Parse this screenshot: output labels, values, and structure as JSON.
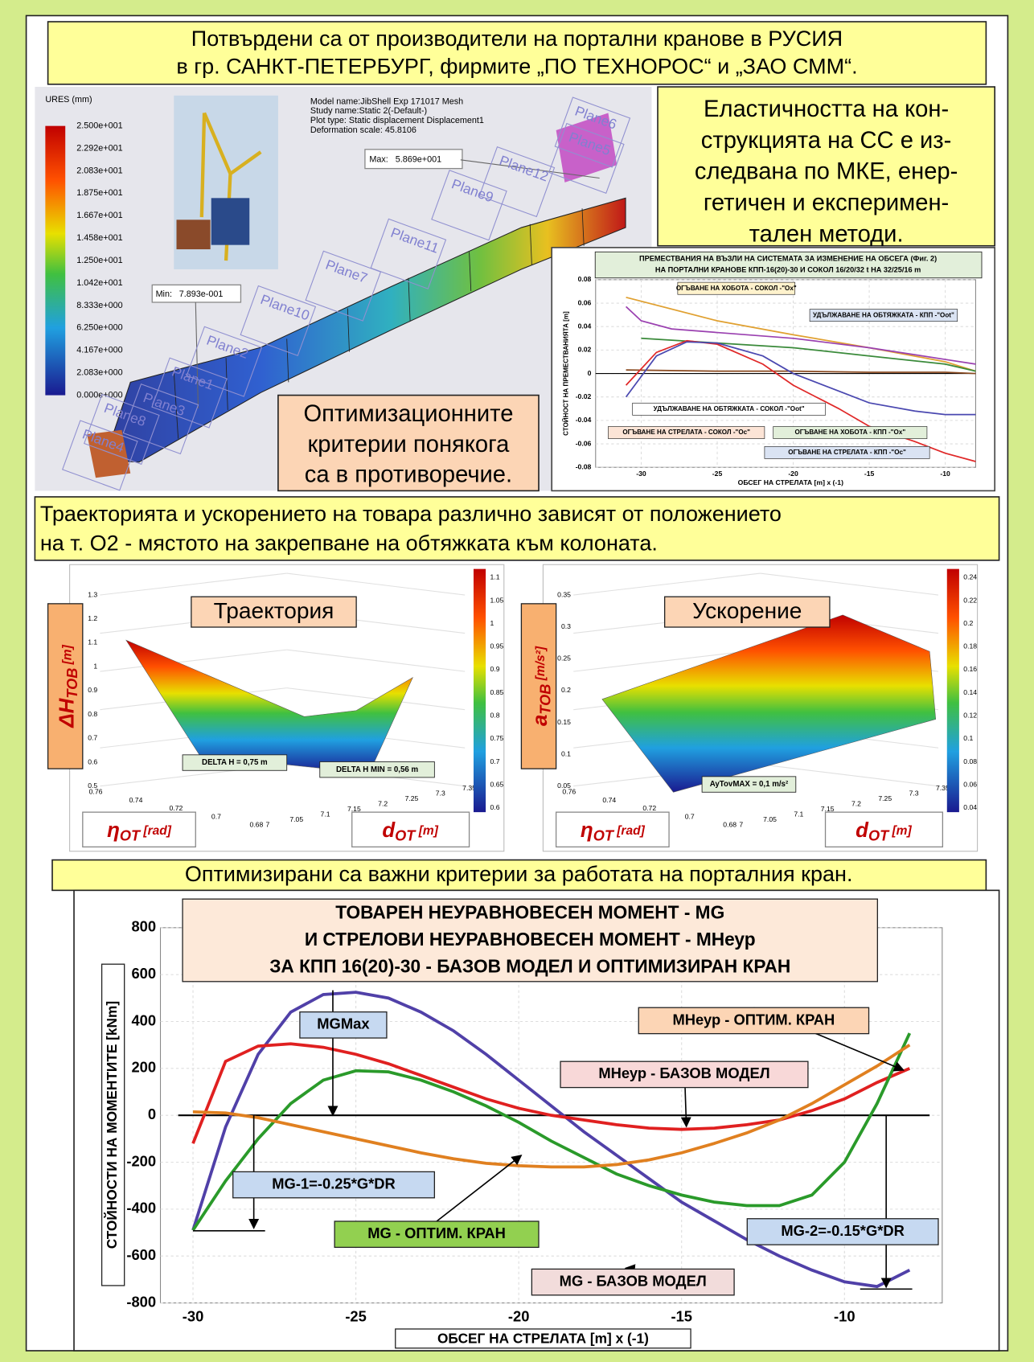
{
  "header": {
    "lines": [
      "Потвърдени са от производители на портални кранове в РУСИЯ",
      "в гр. САНКТ-ПЕТЕРБУРГ, фирмите „ПО ТЕХНОРОС“ и „ЗАО СММ“."
    ]
  },
  "fem": {
    "colorbar_title": "URES (mm)",
    "colorbar_labels": [
      "2.500e+001",
      "2.292e+001",
      "2.083e+001",
      "1.875e+001",
      "1.667e+001",
      "1.458e+001",
      "1.250e+001",
      "1.042e+001",
      "8.333e+000",
      "6.250e+000",
      "4.167e+000",
      "2.083e+000",
      "0.000e+000"
    ],
    "info": [
      "Model name:JibShell Exp 171017 Mesh",
      "Study name:Static 2(-Default-)",
      "Plot type: Static displacement Displacement1",
      "Deformation scale: 45.8106"
    ],
    "max": {
      "label": "Max:",
      "value": "5.869e+001"
    },
    "min": {
      "label": "Min:",
      "value": "7.893e-001"
    },
    "planes": [
      "Plane6",
      "Plane5",
      "Plane12",
      "Plane9",
      "Plane11",
      "Plane7",
      "Plane10",
      "Plane2",
      "Plane1",
      "Plane3",
      "Plane8",
      "Plane4"
    ]
  },
  "elasticity_box": {
    "lines": [
      "Еластичността на кон-",
      "струкцията на СС е из-",
      "следвана по МКЕ, енер-",
      "гетичен и експеримен-",
      "тален методи."
    ]
  },
  "criteria_box": {
    "lines": [
      "Оптимизационните",
      "критерии понякога",
      "са в противоречие."
    ]
  },
  "trajectory_box": {
    "lines": [
      "Траекторията и ускорението на товара различно зависят от положението",
      "на т. О2 - мястото на закрепване на обтяжката към колоната."
    ]
  },
  "surfaces": [
    {
      "title": "Траектория",
      "z_label": {
        "main": "ΔH",
        "sub": "TOB",
        "unit": " [m]"
      },
      "eta_label": {
        "main": "η",
        "sub": "OT",
        "unit": " [rad]"
      },
      "d_label": {
        "main": "d",
        "sub": "OT",
        "unit": " [m]"
      },
      "zticks": [
        0.5,
        0.6,
        0.7,
        0.8,
        0.9,
        1,
        1.1,
        1.2,
        1.3
      ],
      "eta_ticks": [
        0.76,
        0.74,
        0.72,
        0.7,
        0.68
      ],
      "d_ticks": [
        7,
        7.05,
        7.1,
        7.15,
        7.2,
        7.25,
        7.3,
        7.35
      ],
      "colorbar_ticks": [
        0.6,
        0.65,
        0.7,
        0.75,
        0.8,
        0.85,
        0.9,
        0.95,
        1,
        1.05,
        1.1
      ],
      "annotations": [
        "DELTA H = 0,75 m",
        "DELTA H MIN = 0,56 m"
      ]
    },
    {
      "title": "Ускорение",
      "z_label": {
        "main": "a",
        "sub": "TOB",
        "unit": " [m/s²]"
      },
      "eta_label": {
        "main": "η",
        "sub": "OT",
        "unit": " [rad]"
      },
      "d_label": {
        "main": "d",
        "sub": "OT",
        "unit": " [m]"
      },
      "zticks": [
        0.05,
        0.1,
        0.15,
        0.2,
        0.25,
        0.3,
        0.35
      ],
      "eta_ticks": [
        0.76,
        0.74,
        0.72,
        0.7,
        0.68
      ],
      "d_ticks": [
        7,
        7.05,
        7.1,
        7.15,
        7.2,
        7.25,
        7.3,
        7.35
      ],
      "colorbar_ticks": [
        0.04,
        0.06,
        0.08,
        0.1,
        0.12,
        0.14,
        0.16,
        0.18,
        0.2,
        0.22,
        0.24
      ],
      "annotations": [
        "AyTovMAX = 0,1 m/s²"
      ]
    }
  ],
  "optimized_box": {
    "text": "Оптимизирани са важни критерии за работата на порталния кран."
  },
  "chart_data": [
    {
      "type": "line",
      "title": [
        "ПРЕМЕСТВАНИЯ НА ВЪЗЛИ НА СИСТЕМАТА ЗА ИЗМЕНЕНИЕ НА ОБСЕГА (Фиг. 2)",
        "НА ПОРТАЛНИ КРАНОВЕ КПП-16(20)-30 И СОКОЛ 16/20/32 t НА 32/25/16 m"
      ],
      "x_label": "ОБСЕГ НА СТРЕЛАТА  [m] x (-1)",
      "y_label": "СТОЙНОСТ НА ПРЕМЕСТВАНИЯТА [m]",
      "xlim": [
        -33,
        -8
      ],
      "ylim": [
        -0.08,
        0.08
      ],
      "xticks": [
        -30,
        -25,
        -20,
        -15,
        -10
      ],
      "yticks": [
        -0.08,
        -0.06,
        -0.04,
        -0.02,
        0,
        0.02,
        0.04,
        0.06,
        0.08
      ],
      "grid": true,
      "series": [
        {
          "name": "ОГЪВАНЕ НА ХОБОТА - СОКОЛ -\"Ox\"",
          "color": "#e0a030",
          "x": [
            -31,
            -25,
            -20,
            -15,
            -10,
            -8
          ],
          "values": [
            0.065,
            0.045,
            0.033,
            0.022,
            0.01,
            0.002
          ]
        },
        {
          "name": "УДЪЛЖАВАНЕ НА ОБТЯЖКАТА - КПП -\"Oot\"",
          "color": "#3a8a3a",
          "x": [
            -30,
            -25,
            -20,
            -15,
            -10,
            -8
          ],
          "values": [
            0.03,
            0.026,
            0.022,
            0.015,
            0.008,
            0.002
          ]
        },
        {
          "name": "УДЪЛЖАВАНЕ НА ОБТЯЖКАТА - СОКОЛ -\"Oot\"",
          "color": "#8a4a20",
          "x": [
            -31,
            -25,
            -20,
            -15,
            -10,
            -8
          ],
          "values": [
            0.003,
            0.002,
            0.002,
            0.001,
            0.001,
            0
          ]
        },
        {
          "name": "ОГЪВАНЕ НА СТРЕЛАТА - СОКОЛ -\"Oc\"",
          "color": "#e02828",
          "x": [
            -31,
            -29,
            -27,
            -25,
            -22,
            -20,
            -17,
            -15,
            -12,
            -10,
            -8
          ],
          "values": [
            -0.01,
            0.018,
            0.028,
            0.025,
            0.008,
            -0.01,
            -0.03,
            -0.045,
            -0.058,
            -0.068,
            -0.075
          ]
        },
        {
          "name": "ОГЪВАНЕ НА ХОБОТА - КПП -\"Ox\"",
          "color": "#9a40b0",
          "x": [
            -31,
            -30,
            -28,
            -25,
            -20,
            -15,
            -10,
            -8
          ],
          "values": [
            0.057,
            0.045,
            0.038,
            0.035,
            0.03,
            0.022,
            0.012,
            0.008
          ]
        },
        {
          "name": "ОГЪВАНЕ НА СТРЕЛАТА - КПП -\"Oc\"",
          "color": "#4a48b0",
          "x": [
            -31,
            -29,
            -27,
            -25,
            -22,
            -20,
            -17,
            -15,
            -12,
            -10,
            -8
          ],
          "values": [
            -0.02,
            0.015,
            0.027,
            0.026,
            0.015,
            0,
            -0.015,
            -0.025,
            -0.032,
            -0.035,
            -0.035
          ]
        }
      ]
    },
    {
      "type": "line",
      "title": [
        "ТОВАРЕН НЕУРАВНОВЕСЕН МОМЕНТ - MG",
        "И СТРЕЛОВИ НЕУРАВНОВЕСЕН МОМЕНТ - MНеур",
        "ЗА КПП 16(20)-30 - БАЗОВ МОДЕЛ И ОПТИМИЗИРАН КРАН"
      ],
      "x_label": "ОБСЕГ НА СТРЕЛАТА [m] x (-1)",
      "y_label": "СТОЙНОСТИ НА МОМЕНТИТЕ [kNm]",
      "xlim": [
        -31,
        -7
      ],
      "ylim": [
        -800,
        800
      ],
      "xticks": [
        -30,
        -25,
        -20,
        -15,
        -10
      ],
      "yticks": [
        -800,
        -600,
        -400,
        -200,
        0,
        200,
        400,
        600,
        800
      ],
      "grid": true,
      "x": [
        -30,
        -29,
        -28,
        -27,
        -26,
        -25,
        -24,
        -23,
        -22,
        -21,
        -20,
        -19,
        -18,
        -17,
        -16,
        -15,
        -14,
        -13,
        -12,
        -11,
        -10,
        -9,
        -8
      ],
      "series": [
        {
          "name": "MG - БАЗОВ МОДЕЛ",
          "color": "#5040a8",
          "values": [
            -490,
            -50,
            260,
            440,
            515,
            525,
            500,
            440,
            360,
            260,
            150,
            40,
            -70,
            -170,
            -270,
            -370,
            -450,
            -530,
            -600,
            -660,
            -710,
            -730,
            -660
          ]
        },
        {
          "name": "MНеур - БАЗОВ МОДЕЛ",
          "color": "#e02020",
          "values": [
            -120,
            230,
            295,
            305,
            290,
            260,
            220,
            170,
            120,
            70,
            30,
            0,
            -20,
            -40,
            -55,
            -60,
            -55,
            -40,
            -20,
            20,
            70,
            140,
            200
          ]
        },
        {
          "name": "MG - ОПТИМ. КРАН",
          "color": "#2a9a2a",
          "values": [
            -490,
            -280,
            -100,
            50,
            150,
            190,
            185,
            150,
            100,
            40,
            -30,
            -110,
            -180,
            -250,
            -300,
            -340,
            -370,
            -385,
            -385,
            -340,
            -200,
            50,
            350
          ]
        },
        {
          "name": "MНеур - ОПТИМ. КРАН",
          "color": "#e08020",
          "values": [
            15,
            10,
            -10,
            -40,
            -70,
            -100,
            -130,
            -160,
            -185,
            -205,
            -215,
            -220,
            -220,
            -210,
            -190,
            -160,
            -120,
            -75,
            -20,
            50,
            130,
            210,
            300
          ]
        }
      ],
      "annotations": [
        "MGMax",
        "MG-1=-0.25*G*DR",
        "MG-2=-0.15*G*DR"
      ]
    }
  ]
}
